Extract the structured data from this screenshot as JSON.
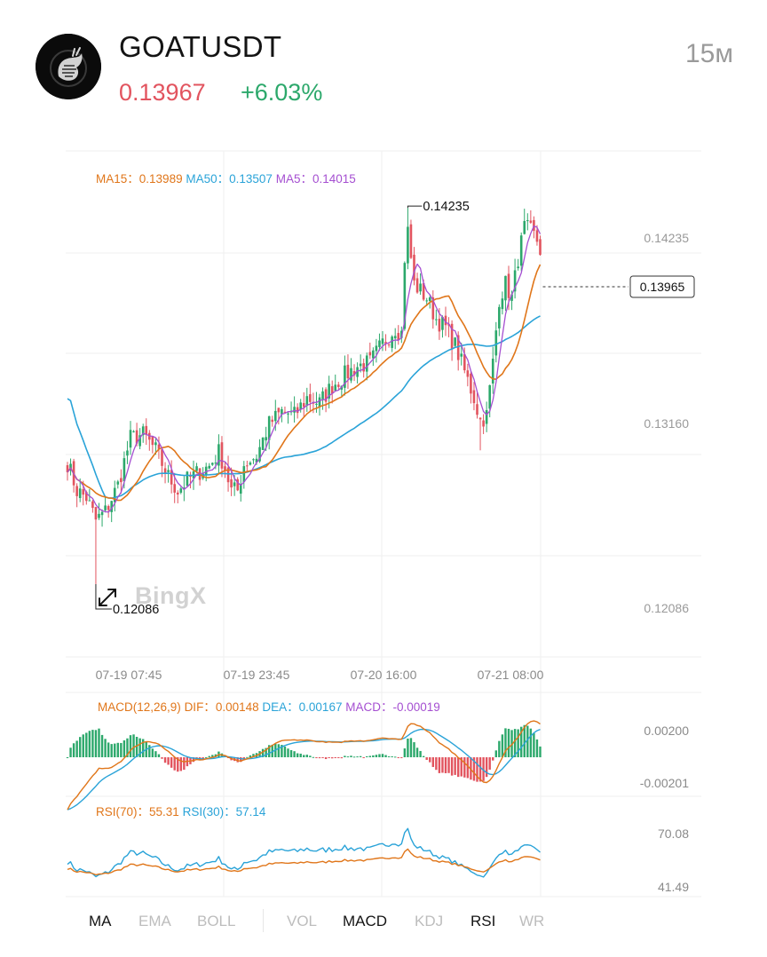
{
  "header": {
    "symbol": "GOATUSDT",
    "price": "0.13967",
    "change": "+6.03%",
    "interval": "15м",
    "avatar_icon": "goat-logo-icon",
    "colors": {
      "price": "#e2545f",
      "change": "#2ca86b"
    }
  },
  "main_legend": {
    "ma15_label": "MA15：",
    "ma15_value": "0.13989",
    "ma50_label": "MA50：",
    "ma50_value": "0.13507",
    "ma5_label": "MA5：",
    "ma5_value": "0.14015"
  },
  "macd_legend": {
    "name": "MACD(12,26,9)",
    "dif_label": "DIF：",
    "dif_value": "0.00148",
    "dea_label": "DEA：",
    "dea_value": "0.00167",
    "macd_label": "MACD：",
    "macd_value": "-0.00019"
  },
  "rsi_legend": {
    "rsi70_label": "RSI(70)：",
    "rsi70_value": "55.31",
    "rsi30_label": "RSI(30)：",
    "rsi30_value": "57.14"
  },
  "brand": "BingX",
  "chart_data": {
    "type": "candlestick",
    "price_axis": [
      "0.14235",
      "0.13160",
      "0.12086"
    ],
    "time_axis": [
      "07-19 07:45",
      "07-19 23:45",
      "07-20 16:00",
      "07-21 08:00"
    ],
    "high_marker": "0.14235",
    "low_marker": "0.12086",
    "last_price_marker": "0.13965",
    "ylim": [
      0.1167,
      0.1456
    ],
    "macd_axis": [
      "0.00200",
      "-0.00201"
    ],
    "rsi_axis": [
      "70.08",
      "41.49"
    ],
    "rsi_ylim": [
      33,
      80
    ],
    "keypoints_close": [
      [
        0,
        0.1278
      ],
      [
        3,
        0.1262
      ],
      [
        6,
        0.1258
      ],
      [
        9,
        0.1245
      ],
      [
        12,
        0.125
      ],
      [
        16,
        0.1265
      ],
      [
        20,
        0.1292
      ],
      [
        24,
        0.1294
      ],
      [
        28,
        0.1285
      ],
      [
        32,
        0.127
      ],
      [
        35,
        0.1262
      ],
      [
        38,
        0.1268
      ],
      [
        42,
        0.1273
      ],
      [
        45,
        0.1276
      ],
      [
        48,
        0.1284
      ],
      [
        50,
        0.1275
      ],
      [
        52,
        0.1262
      ],
      [
        54,
        0.1262
      ],
      [
        56,
        0.1277
      ],
      [
        60,
        0.1282
      ],
      [
        64,
        0.13
      ],
      [
        68,
        0.1307
      ],
      [
        72,
        0.1305
      ],
      [
        76,
        0.1315
      ],
      [
        80,
        0.1312
      ],
      [
        84,
        0.1322
      ],
      [
        88,
        0.1328
      ],
      [
        92,
        0.1333
      ],
      [
        96,
        0.1335
      ],
      [
        100,
        0.1346
      ],
      [
        104,
        0.1355
      ],
      [
        106,
        0.1352
      ],
      [
        107,
        0.1395
      ],
      [
        108,
        0.141
      ],
      [
        110,
        0.138
      ],
      [
        114,
        0.1372
      ],
      [
        117,
        0.136
      ],
      [
        120,
        0.1355
      ],
      [
        123,
        0.1345
      ],
      [
        126,
        0.133
      ],
      [
        129,
        0.1315
      ],
      [
        131,
        0.1302
      ],
      [
        133,
        0.1305
      ],
      [
        135,
        0.1335
      ],
      [
        137,
        0.1372
      ],
      [
        139,
        0.138
      ],
      [
        141,
        0.1372
      ],
      [
        143,
        0.1395
      ],
      [
        145,
        0.1412
      ],
      [
        147,
        0.141
      ],
      [
        149,
        0.1405
      ],
      [
        150,
        0.1397
      ]
    ],
    "series": [
      {
        "name": "MA15",
        "color": "#e0761a"
      },
      {
        "name": "MA50",
        "color": "#2aa3d8"
      },
      {
        "name": "MA5",
        "color": "#a54fd1"
      }
    ]
  },
  "tabs": [
    {
      "label": "MA",
      "active": true
    },
    {
      "label": "EMA",
      "active": false
    },
    {
      "label": "BOLL",
      "active": false
    },
    {
      "label": "VOL",
      "active": false
    },
    {
      "label": "MACD",
      "active": true
    },
    {
      "label": "KDJ",
      "active": false
    },
    {
      "label": "RSI",
      "active": true
    },
    {
      "label": "WR",
      "active": false
    }
  ]
}
